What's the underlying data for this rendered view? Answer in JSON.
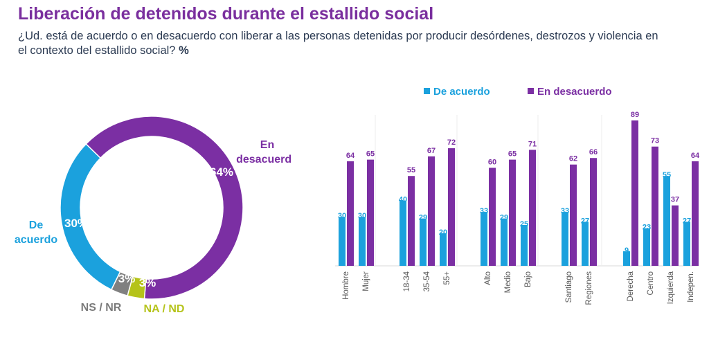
{
  "title": "Liberación de detenidos durante el estallido social",
  "subtitle": "¿Ud. está de acuerdo o en desacuerdo con liberar a las personas detenidas por producir desórdenes, destrozos y violencia en el contexto del estallido social?",
  "unit": "%",
  "colors": {
    "acuerdo": "#1ba1dd",
    "desacuerdo": "#7b2fa3",
    "nsnr": "#808080",
    "nand": "#b5c31a",
    "title": "#7a2f9e"
  },
  "chart_data": [
    {
      "type": "pie",
      "variant": "donut",
      "slices": [
        {
          "key": "desacuerdo",
          "label_lines": [
            "En",
            "desacuerdo"
          ],
          "value": 64,
          "pct_label": "64%"
        },
        {
          "key": "nand",
          "label_lines": [
            "NA / ND"
          ],
          "value": 3,
          "pct_label": "3%"
        },
        {
          "key": "nsnr",
          "label_lines": [
            "NS / NR"
          ],
          "value": 3,
          "pct_label": "3%"
        },
        {
          "key": "acuerdo",
          "label_lines": [
            "De",
            "acuerdo"
          ],
          "value": 30,
          "pct_label": "30%"
        }
      ]
    },
    {
      "type": "bar",
      "legend": [
        "De acuerdo",
        "En desacuerdo"
      ],
      "legend_position": "top",
      "ylim": [
        0,
        100
      ],
      "groups": [
        {
          "categories": [
            "Hombre",
            "Mujer"
          ]
        },
        {
          "categories": [
            "18-34",
            "35-54",
            "55+"
          ]
        },
        {
          "categories": [
            "Alto",
            "Medio",
            "Bajo"
          ]
        },
        {
          "categories": [
            "Santiago",
            "Regiones"
          ]
        },
        {
          "categories": [
            "Derecha",
            "Centro",
            "Izquierda",
            "Indepen."
          ]
        }
      ],
      "categories": [
        "Hombre",
        "Mujer",
        "18-34",
        "35-54",
        "55+",
        "Alto",
        "Medio",
        "Bajo",
        "Santiago",
        "Regiones",
        "Derecha",
        "Centro",
        "Izquierda",
        "Indepen."
      ],
      "series": [
        {
          "name": "De acuerdo",
          "values": [
            30,
            30,
            40,
            29,
            20,
            33,
            29,
            25,
            33,
            27,
            9,
            23,
            55,
            27
          ]
        },
        {
          "name": "En desacuerdo",
          "values": [
            64,
            65,
            55,
            67,
            72,
            60,
            65,
            71,
            62,
            66,
            89,
            73,
            37,
            64
          ]
        }
      ]
    }
  ]
}
